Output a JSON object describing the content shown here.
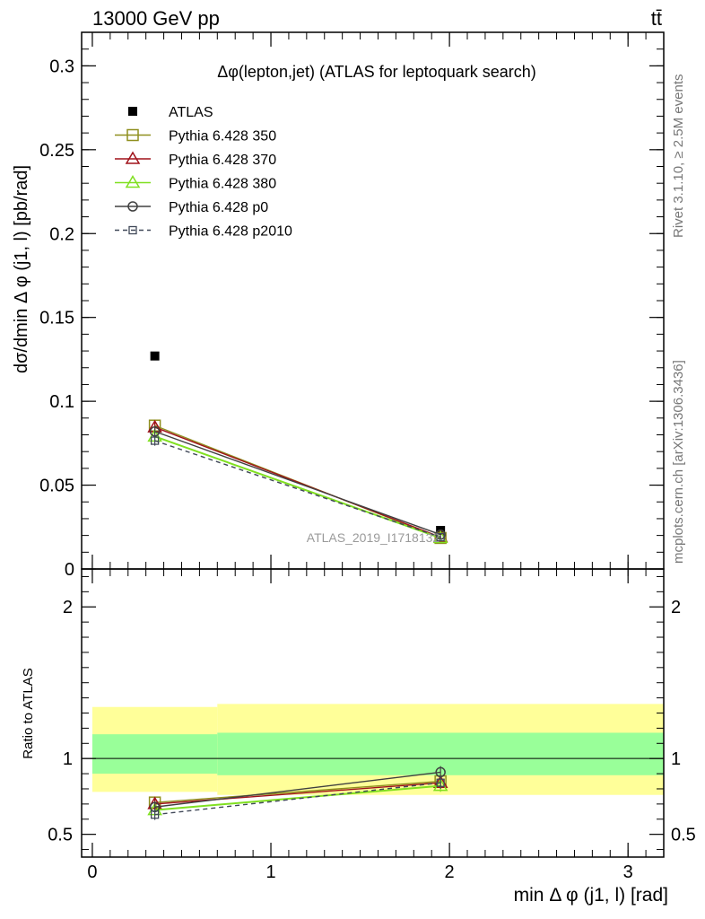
{
  "header": {
    "energy_label": "13000 GeV pp",
    "process_label": "tt̄",
    "side_label_rivet": "Rivet 3.1.10, ≥ 2.5M events",
    "side_label_site": "mcplots.cern.ch [arXiv:1306.3436]",
    "watermark": "ATLAS_2019_I1718132"
  },
  "chart_data": [
    {
      "type": "line",
      "title": "Δφ(lepton,jet) (ATLAS for leptoquark search)",
      "xlabel": "min Δ φ (j1, l) [rad]",
      "ylabel": "dσ/dmin Δ φ (j1, l) [pb/rad]",
      "xlim": [
        -0.06,
        3.2
      ],
      "ylim": [
        0,
        0.32
      ],
      "yticks": [
        0,
        0.05,
        0.1,
        0.15,
        0.2,
        0.25,
        0.3
      ],
      "ytick_labels": [
        "0",
        "0.05",
        "0.1",
        "0.15",
        "0.2",
        "0.25",
        "0.3"
      ],
      "legend_position": "top-left",
      "x": [
        0.35,
        1.95
      ],
      "series": [
        {
          "name": "ATLAS",
          "style": "data",
          "color": "#000000",
          "values": [
            0.127,
            0.023
          ]
        },
        {
          "name": "Pythia 6.428 350",
          "marker": "square",
          "dash": false,
          "color": "#8f8f1f",
          "values": [
            0.0855,
            0.0185
          ],
          "err": [
            0.003,
            0.0008
          ]
        },
        {
          "name": "Pythia 6.428 370",
          "marker": "triangle",
          "dash": false,
          "color": "#a0121a",
          "values": [
            0.0845,
            0.019
          ],
          "err": [
            0.003,
            0.0008
          ]
        },
        {
          "name": "Pythia 6.428 380",
          "marker": "triangle",
          "dash": false,
          "color": "#80e020",
          "values": [
            0.079,
            0.0185
          ],
          "err": [
            0.003,
            0.0008
          ]
        },
        {
          "name": "Pythia 6.428 p0",
          "marker": "circle",
          "dash": false,
          "color": "#404040",
          "values": [
            0.082,
            0.0205
          ],
          "err": [
            0.003,
            0.0008
          ]
        },
        {
          "name": "Pythia 6.428 p2010",
          "marker": "square-small",
          "dash": true,
          "color": "#404858",
          "values": [
            0.0765,
            0.019
          ],
          "err": [
            0.003,
            0.0008
          ]
        }
      ]
    },
    {
      "type": "line",
      "ylabel": "Ratio to ATLAS",
      "xlabel": "min Δ φ (j1, l) [rad]",
      "xlim": [
        -0.06,
        3.2
      ],
      "ylim": [
        0.35,
        2.25
      ],
      "yticks": [
        0.5,
        1,
        2
      ],
      "ytick_labels": [
        "0.5",
        "1",
        "2"
      ],
      "xticks": [
        0,
        1,
        2,
        3
      ],
      "xtick_labels": [
        "0",
        "1",
        "2",
        "3"
      ],
      "bands": [
        {
          "x_range": [
            0,
            0.7
          ],
          "yellow": [
            0.78,
            1.34
          ],
          "green": [
            0.9,
            1.16
          ]
        },
        {
          "x_range": [
            0.7,
            3.2
          ],
          "yellow": [
            0.76,
            1.36
          ],
          "green": [
            0.89,
            1.17
          ]
        }
      ],
      "x": [
        0.35,
        1.95
      ],
      "series": [
        {
          "name": "Pythia 6.428 350",
          "values": [
            0.71,
            0.85
          ],
          "err": [
            0.035,
            0.04
          ]
        },
        {
          "name": "Pythia 6.428 370",
          "values": [
            0.7,
            0.84
          ],
          "err": [
            0.035,
            0.04
          ]
        },
        {
          "name": "Pythia 6.428 380",
          "values": [
            0.66,
            0.82
          ],
          "err": [
            0.035,
            0.04
          ]
        },
        {
          "name": "Pythia 6.428 p0",
          "values": [
            0.68,
            0.91
          ],
          "err": [
            0.035,
            0.04
          ]
        },
        {
          "name": "Pythia 6.428 p2010",
          "values": [
            0.63,
            0.84
          ],
          "err": [
            0.035,
            0.04
          ]
        }
      ]
    }
  ]
}
